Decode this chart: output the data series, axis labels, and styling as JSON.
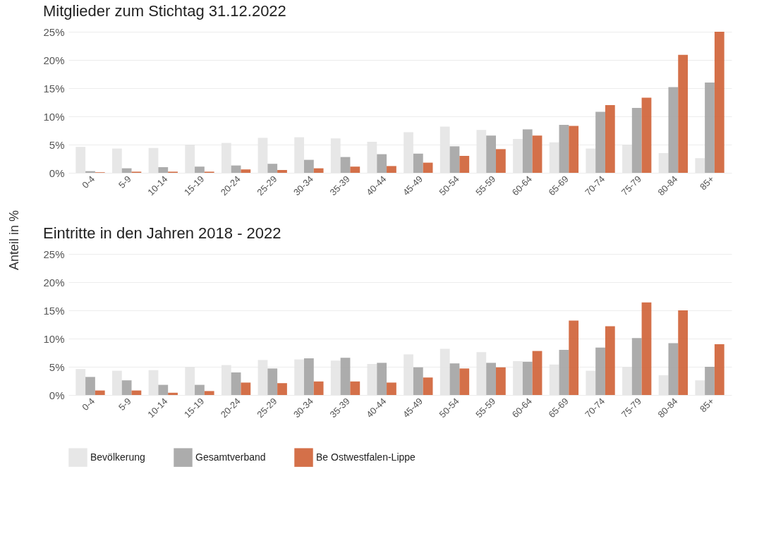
{
  "chart_data": [
    {
      "type": "bar",
      "title": "Mitglieder zum Stichtag 31.12.2022",
      "ylabel": "Anteil in %",
      "categories": [
        "0-4",
        "5-9",
        "10-14",
        "15-19",
        "20-24",
        "25-29",
        "30-34",
        "35-39",
        "40-44",
        "45-49",
        "50-54",
        "55-59",
        "60-64",
        "65-69",
        "70-74",
        "75-79",
        "80-84",
        "85+"
      ],
      "series": [
        {
          "name": "Bevölkerung",
          "color": "#e6e6e6",
          "values": [
            4.6,
            4.3,
            4.4,
            5.0,
            5.3,
            6.2,
            6.3,
            6.1,
            5.5,
            7.2,
            8.2,
            7.6,
            6.0,
            5.4,
            4.3,
            5.0,
            3.5,
            2.6
          ]
        },
        {
          "name": "Gesamtverband",
          "color": "#a8a8a8",
          "values": [
            0.3,
            0.8,
            1.0,
            1.1,
            1.3,
            1.6,
            2.3,
            2.8,
            3.3,
            3.4,
            4.7,
            6.6,
            7.7,
            8.5,
            10.8,
            11.5,
            15.2,
            16.0
          ]
        },
        {
          "name": "Be Ostwestfalen-Lippe",
          "color": "#d2683f",
          "values": [
            0.1,
            0.2,
            0.2,
            0.2,
            0.6,
            0.5,
            0.8,
            1.1,
            1.2,
            1.8,
            3.0,
            4.2,
            6.6,
            8.3,
            12.0,
            13.3,
            20.9,
            25.0
          ]
        }
      ],
      "ylim": [
        0,
        25
      ],
      "yticks": [
        {
          "value": 0,
          "label": "0%"
        },
        {
          "value": 5,
          "label": "5%"
        },
        {
          "value": 10,
          "label": "10%"
        },
        {
          "value": 15,
          "label": "15%"
        },
        {
          "value": 20,
          "label": "20%"
        },
        {
          "value": 25,
          "label": "25%"
        }
      ],
      "grid": "y",
      "legend": "bottom"
    },
    {
      "type": "bar",
      "title": "Eintritte in den Jahren 2018 - 2022",
      "categories": [
        "0-4",
        "5-9",
        "10-14",
        "15-19",
        "20-24",
        "25-29",
        "30-34",
        "35-39",
        "40-44",
        "45-49",
        "50-54",
        "55-59",
        "60-64",
        "65-69",
        "70-74",
        "75-79",
        "80-84",
        "85+"
      ],
      "series": [
        {
          "name": "Bevölkerung",
          "color": "#e6e6e6",
          "values": [
            4.6,
            4.3,
            4.4,
            5.0,
            5.3,
            6.2,
            6.3,
            6.1,
            5.5,
            7.2,
            8.2,
            7.6,
            6.0,
            5.4,
            4.3,
            5.0,
            3.5,
            2.6
          ]
        },
        {
          "name": "Gesamtverband",
          "color": "#a8a8a8",
          "values": [
            3.2,
            2.6,
            1.8,
            1.8,
            4.0,
            4.7,
            6.5,
            6.6,
            5.7,
            4.9,
            5.6,
            5.7,
            5.9,
            8.0,
            8.4,
            10.1,
            9.2,
            5.0
          ]
        },
        {
          "name": "Be Ostwestfalen-Lippe",
          "color": "#d2683f",
          "values": [
            0.8,
            0.8,
            0.4,
            0.7,
            2.2,
            2.1,
            2.4,
            2.4,
            2.2,
            3.1,
            4.7,
            4.9,
            7.8,
            13.2,
            12.2,
            16.4,
            15.0,
            9.0
          ]
        }
      ],
      "ylim": [
        0,
        25
      ],
      "yticks": [
        {
          "value": 0,
          "label": "0%"
        },
        {
          "value": 5,
          "label": "5%"
        },
        {
          "value": 10,
          "label": "10%"
        },
        {
          "value": 15,
          "label": "15%"
        },
        {
          "value": 20,
          "label": "20%"
        },
        {
          "value": 25,
          "label": "25%"
        }
      ],
      "grid": "y",
      "legend": "bottom"
    }
  ]
}
